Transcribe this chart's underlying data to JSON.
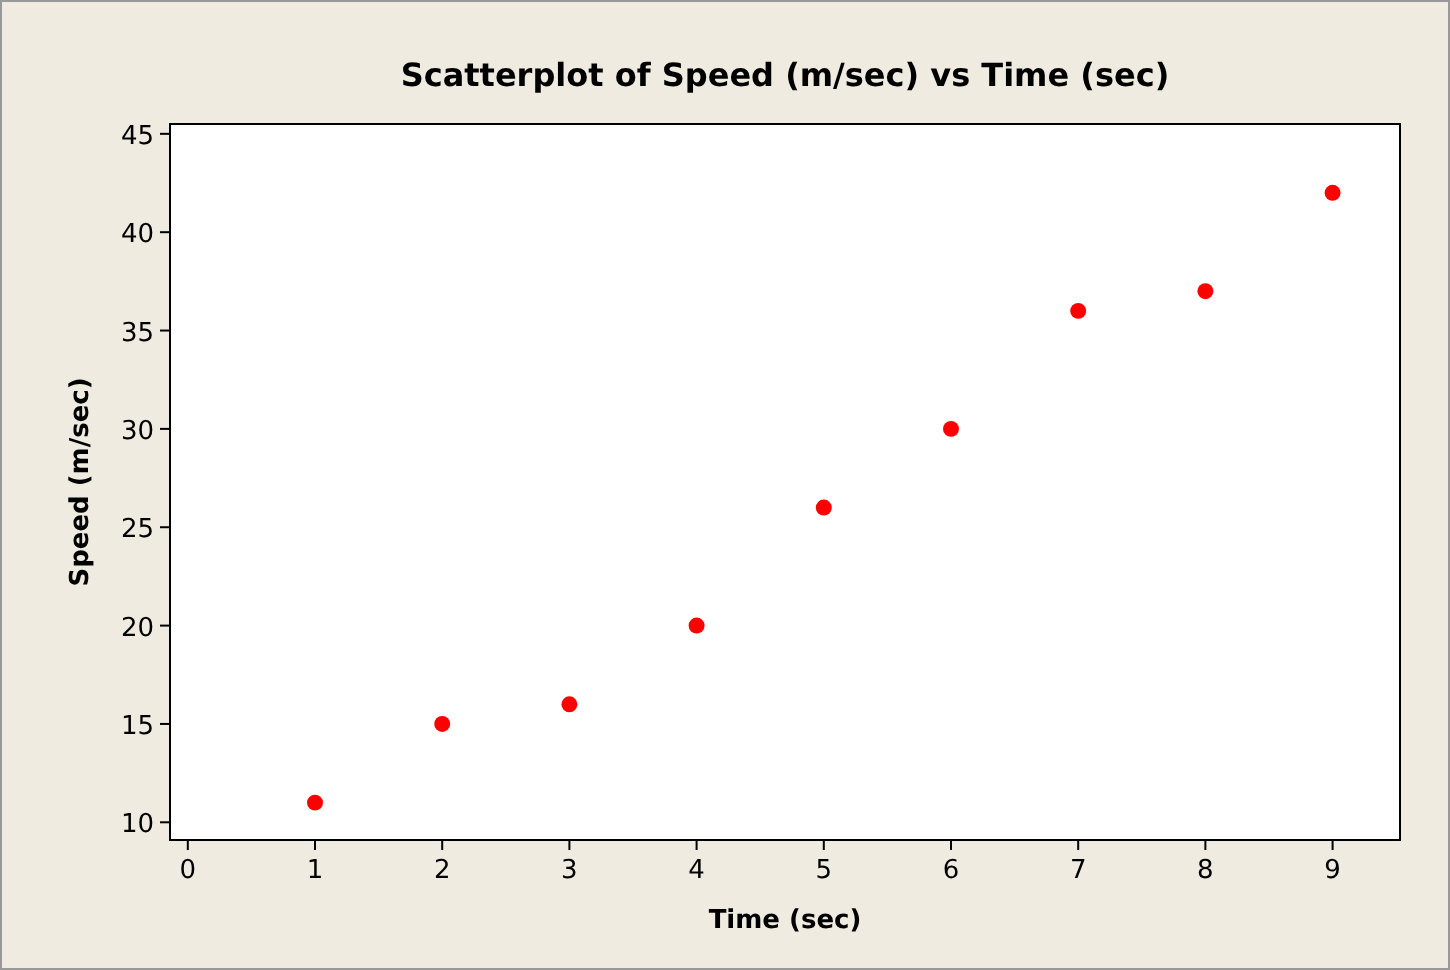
{
  "chart_data": {
    "type": "scatter",
    "title": "Scatterplot of Speed (m/sec) vs Time (sec)",
    "xlabel": "Time (sec)",
    "ylabel": "Speed (m/sec)",
    "x": [
      1,
      2,
      3,
      4,
      5,
      6,
      7,
      8,
      9
    ],
    "series": [
      {
        "color": "#ff0000",
        "values": [
          11,
          15,
          16,
          20,
          26,
          30,
          36,
          37,
          42
        ]
      }
    ],
    "xlim": [
      -0.14,
      9.53
    ],
    "ylim": [
      9.1,
      45.5
    ],
    "xticks": [
      0,
      1,
      2,
      3,
      4,
      5,
      6,
      7,
      8,
      9
    ],
    "yticks": [
      10,
      15,
      20,
      25,
      30,
      35,
      40,
      45
    ],
    "marker": "circle",
    "grid": false
  }
}
